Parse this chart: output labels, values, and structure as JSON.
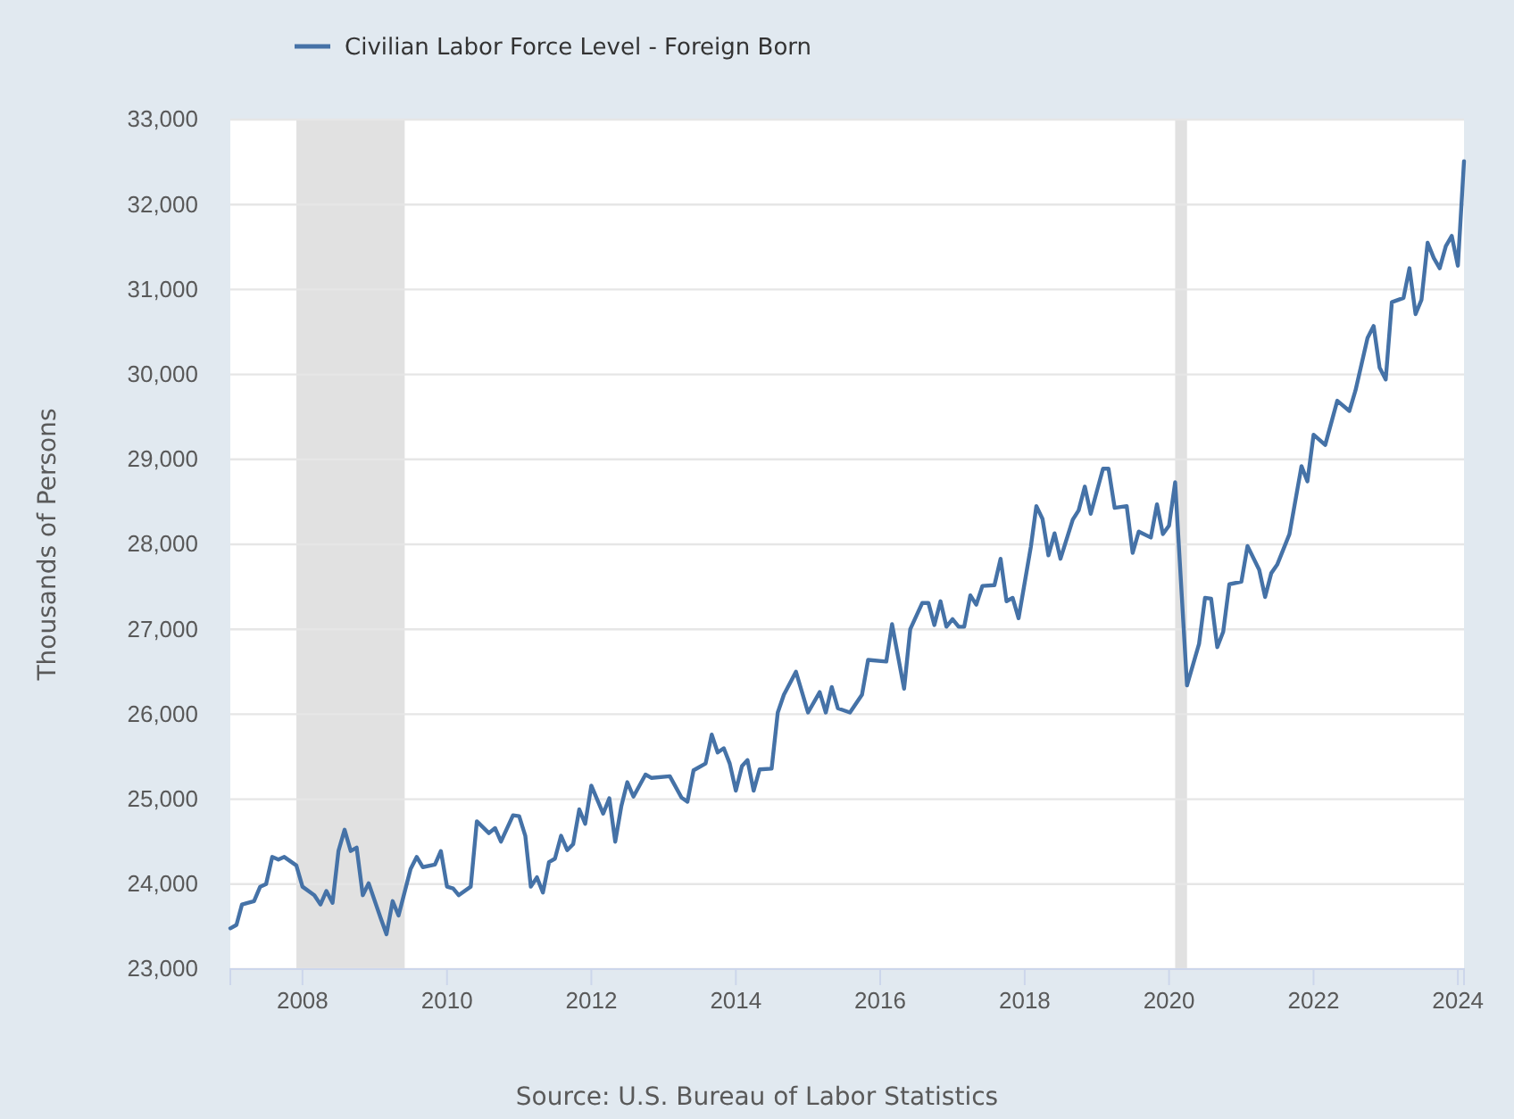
{
  "chart_data": {
    "type": "line",
    "xlabel": null,
    "ylabel": "Thousands of Persons",
    "annotations": [
      "Source: U.S. Bureau of Labor Statistics"
    ],
    "legend": "top left",
    "grid": "y",
    "xlim": [
      "2007-01",
      "2024-02"
    ],
    "xticks": [
      {
        "value": "2008",
        "label": "2008"
      },
      {
        "value": "2010",
        "label": "2010"
      },
      {
        "value": "2012",
        "label": "2012"
      },
      {
        "value": "2014",
        "label": "2014"
      },
      {
        "value": "2016",
        "label": "2016"
      },
      {
        "value": "2018",
        "label": "2018"
      },
      {
        "value": "2020",
        "label": "2020"
      },
      {
        "value": "2022",
        "label": "2022"
      },
      {
        "value": "2024",
        "label": "2024"
      }
    ],
    "ylim": [
      23000,
      33000
    ],
    "yticks": [
      {
        "value": 23000,
        "label": "23,000"
      },
      {
        "value": 24000,
        "label": "24,000"
      },
      {
        "value": 25000,
        "label": "25,000"
      },
      {
        "value": 26000,
        "label": "26,000"
      },
      {
        "value": 27000,
        "label": "27,000"
      },
      {
        "value": 28000,
        "label": "28,000"
      },
      {
        "value": 29000,
        "label": "29,000"
      },
      {
        "value": 30000,
        "label": "30,000"
      },
      {
        "value": 31000,
        "label": "31,000"
      },
      {
        "value": 32000,
        "label": "32,000"
      },
      {
        "value": 33000,
        "label": "33,000"
      }
    ],
    "bands": [
      {
        "axis": "x",
        "from": "2007-12",
        "to": "2009-06",
        "color": "#e1e1e1"
      },
      {
        "axis": "x",
        "from": "2020-02",
        "to": "2020-04",
        "color": "#e1e1e1"
      }
    ],
    "x": [
      "2007-01",
      "2007-02",
      "2007-03",
      "2007-05",
      "2007-06",
      "2007-07",
      "2007-08",
      "2007-09",
      "2007-10",
      "2007-12",
      "2008-01",
      "2008-03",
      "2008-04",
      "2008-05",
      "2008-06",
      "2008-07",
      "2008-08",
      "2008-09",
      "2008-10",
      "2008-11",
      "2008-12",
      "2009-02",
      "2009-03",
      "2009-04",
      "2009-05",
      "2009-07",
      "2009-08",
      "2009-09",
      "2009-11",
      "2009-12",
      "2010-01",
      "2010-02",
      "2010-03",
      "2010-05",
      "2010-06",
      "2010-08",
      "2010-09",
      "2010-10",
      "2010-12",
      "2011-01",
      "2011-02",
      "2011-03",
      "2011-04",
      "2011-05",
      "2011-06",
      "2011-07",
      "2011-08",
      "2011-09",
      "2011-10",
      "2011-11",
      "2011-12",
      "2012-01",
      "2012-03",
      "2012-04",
      "2012-05",
      "2012-06",
      "2012-07",
      "2012-08",
      "2012-10",
      "2012-11",
      "2013-02",
      "2013-04",
      "2013-05",
      "2013-06",
      "2013-08",
      "2013-09",
      "2013-10",
      "2013-11",
      "2013-12",
      "2014-01",
      "2014-02",
      "2014-03",
      "2014-04",
      "2014-05",
      "2014-07",
      "2014-08",
      "2014-09",
      "2014-11",
      "2015-01",
      "2015-03",
      "2015-04",
      "2015-05",
      "2015-06",
      "2015-08",
      "2015-10",
      "2015-11",
      "2016-02",
      "2016-03",
      "2016-05",
      "2016-06",
      "2016-08",
      "2016-09",
      "2016-10",
      "2016-11",
      "2016-12",
      "2017-01",
      "2017-02",
      "2017-03",
      "2017-04",
      "2017-05",
      "2017-06",
      "2017-08",
      "2017-09",
      "2017-10",
      "2017-11",
      "2017-12",
      "2018-02",
      "2018-03",
      "2018-04",
      "2018-05",
      "2018-06",
      "2018-07",
      "2018-09",
      "2018-10",
      "2018-11",
      "2018-12",
      "2019-02",
      "2019-03",
      "2019-04",
      "2019-06",
      "2019-07",
      "2019-08",
      "2019-10",
      "2019-11",
      "2019-12",
      "2020-01",
      "2020-02",
      "2020-04",
      "2020-06",
      "2020-07",
      "2020-08",
      "2020-09",
      "2020-10",
      "2020-11",
      "2021-01",
      "2021-02",
      "2021-04",
      "2021-05",
      "2021-06",
      "2021-07",
      "2021-09",
      "2021-11",
      "2021-12",
      "2022-01",
      "2022-03",
      "2022-05",
      "2022-07",
      "2022-08",
      "2022-10",
      "2022-11",
      "2022-12",
      "2023-01",
      "2023-02",
      "2023-04",
      "2023-05",
      "2023-06",
      "2023-07",
      "2023-08",
      "2023-09",
      "2023-10",
      "2023-11",
      "2023-12",
      "2024-01",
      "2024-02"
    ],
    "series": [
      {
        "name": "Civilian Labor Force Level - Foreign Born",
        "color": "#4572a7",
        "values": [
          23480,
          23520,
          23760,
          23800,
          23970,
          24000,
          24320,
          24290,
          24320,
          24220,
          23970,
          23870,
          23760,
          23920,
          23780,
          24390,
          24640,
          24390,
          24430,
          23870,
          24010,
          23590,
          23410,
          23800,
          23630,
          24180,
          24320,
          24200,
          24230,
          24390,
          23970,
          23950,
          23870,
          23970,
          24740,
          24600,
          24660,
          24500,
          24810,
          24800,
          24570,
          23970,
          24080,
          23900,
          24260,
          24300,
          24570,
          24400,
          24470,
          24880,
          24710,
          25160,
          24830,
          25010,
          24500,
          24920,
          25200,
          25030,
          25290,
          25250,
          25270,
          25020,
          24970,
          25340,
          25420,
          25760,
          25550,
          25600,
          25420,
          25100,
          25390,
          25460,
          25100,
          25350,
          25360,
          26020,
          26230,
          26500,
          26020,
          26260,
          26020,
          26320,
          26070,
          26020,
          26230,
          26640,
          26620,
          27060,
          26300,
          27000,
          27310,
          27310,
          27050,
          27330,
          27030,
          27120,
          27030,
          27030,
          27400,
          27290,
          27510,
          27520,
          27830,
          27330,
          27370,
          27130,
          27970,
          28450,
          28300,
          27870,
          28130,
          27830,
          28290,
          28400,
          28680,
          28360,
          28890,
          28890,
          28430,
          28450,
          27900,
          28150,
          28080,
          28470,
          28120,
          28220,
          28730,
          26340,
          26830,
          27370,
          27360,
          26790,
          26970,
          27530,
          27560,
          27980,
          27700,
          27380,
          27660,
          27760,
          28120,
          28920,
          28740,
          29290,
          29170,
          29690,
          29570,
          29810,
          30430,
          30570,
          30080,
          29940,
          30850,
          30900,
          31250,
          30710,
          30880,
          31550,
          31370,
          31250,
          31510,
          31630,
          31280,
          32510
        ]
      }
    ]
  }
}
